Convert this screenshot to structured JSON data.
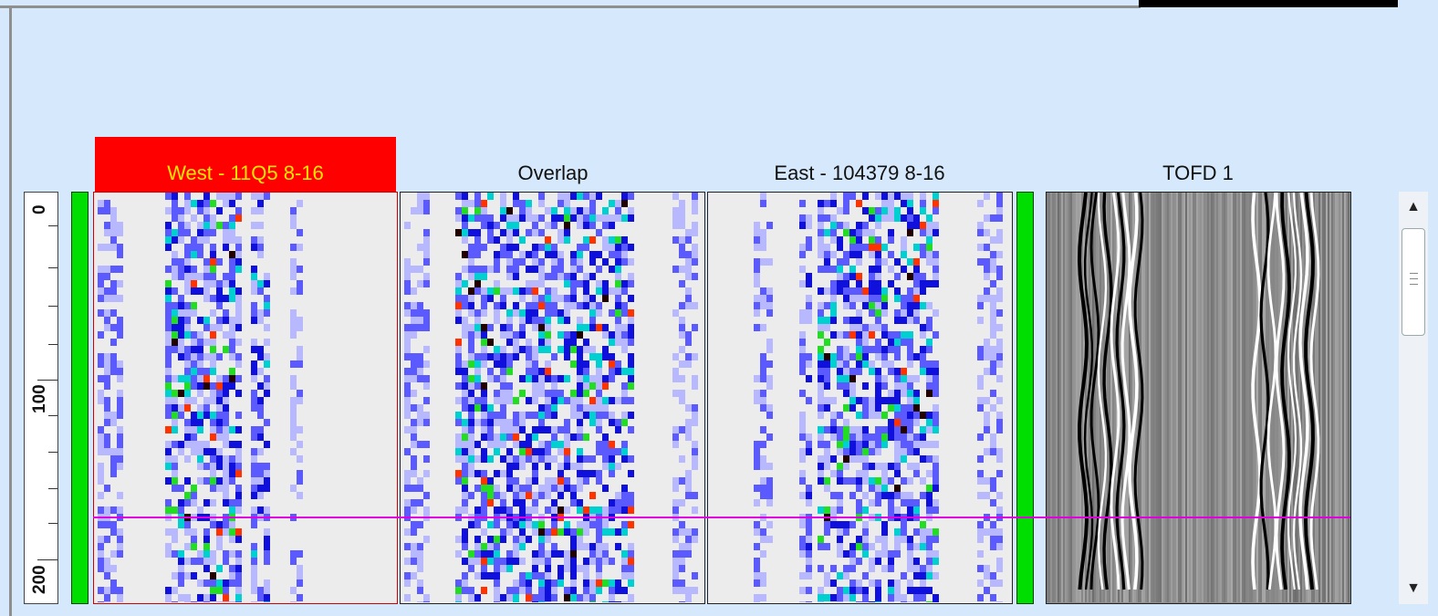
{
  "panels": [
    {
      "id": "west",
      "title": "West - 11Q5 8-16",
      "selected": true
    },
    {
      "id": "overlap",
      "title": "Overlap",
      "selected": false
    },
    {
      "id": "east",
      "title": "East - 104379 8-16",
      "selected": false
    },
    {
      "id": "tofd",
      "title": "TOFD 1",
      "selected": false
    }
  ],
  "ruler": {
    "labels": [
      "0",
      "100",
      "200"
    ]
  },
  "colors": {
    "background": "#d6e8fb",
    "selected_header": "#ff0000",
    "selected_text": "#ffe600",
    "indicator": "#00dd00",
    "cursor": "#e000e0"
  },
  "scrollbar": {
    "up_icon": "triangle-up",
    "down_icon": "triangle-down"
  }
}
